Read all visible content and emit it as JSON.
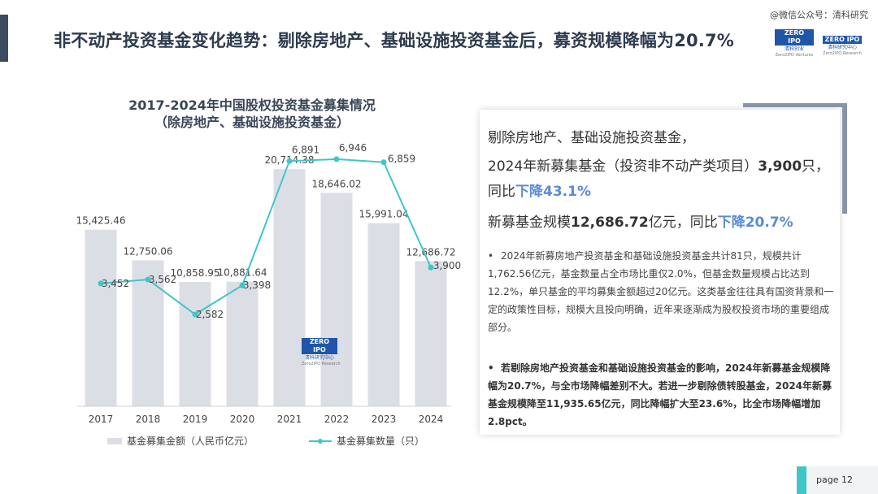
{
  "header": {
    "title": "非不动产投资基金变化趋势：剔除房地产、基础设施投资基金后，募资规模降幅为20.7%",
    "watermark": "@微信公众号：清科研究",
    "logo1_badge": "ZERO IPO",
    "logo1_sub": "清科创业",
    "logo1_sub2": "Zero2IPO Ventures",
    "logo2_badge": "ZERO IPO",
    "logo2_sub": "清科研究中心",
    "logo2_sub2": "Zero2IPO Research"
  },
  "chart_data": {
    "type": "bar",
    "title": "2017-2024年中国股权投资基金募集情况",
    "subtitle": "（除房地产、基础设施投资基金）",
    "categories": [
      "2017",
      "2018",
      "2019",
      "2020",
      "2021",
      "2022",
      "2023",
      "2024"
    ],
    "series": [
      {
        "name": "基金募集金额（人民币亿元）",
        "type": "bar",
        "color": "#dcdee6",
        "values": [
          15425.46,
          12750.06,
          10858.95,
          10881.64,
          20714.38,
          18646.02,
          15991.04,
          12686.72
        ],
        "labels": [
          "15,425.46",
          "12,750.06",
          "10,858.95",
          "10,881.64",
          "20,714.38",
          "18,646.02",
          "15,991.04",
          "12,686.72"
        ]
      },
      {
        "name": "基金募集数量（只）",
        "type": "line",
        "color": "#3ec6c9",
        "values": [
          3452,
          3562,
          2582,
          3398,
          6891,
          6946,
          6859,
          3900
        ],
        "labels": [
          "3,452",
          "3,562",
          "2,582",
          "3,398",
          "6,891",
          "6,946",
          "6,859",
          "3,900"
        ]
      }
    ],
    "bar_ylim": [
      0,
      23000
    ],
    "line_ylim": [
      0,
      7400
    ],
    "legend": "bottom",
    "grid": false,
    "watermark_badge": "ZERO IPO",
    "watermark_sub": "清科研究中心",
    "watermark_sub2": "Zero2IPO Research"
  },
  "panel": {
    "line1": "剔除房地产、基础设施投资基金，",
    "line2_a": "2024年新募集基金（投资非不动产类项目）",
    "line2_b": "3,900",
    "line2_c": "只，",
    "line3_a": "同比",
    "line3_b": "下降43.1%",
    "line4_a": "新募基金规模",
    "line4_b": "12,686.72",
    "line4_c": "亿元，同比",
    "line4_d": "下降20.7%",
    "bullet1": "2024年新募房地产投资基金和基础设施投资基金共计81只，规模共计1,762.56亿元，基金数量占全市场比重仅2.0%，但基金数量规模占比达到12.2%，单只基金的平均募集金额超过20亿元。这类基金往往具有国资背景和一定的政策性目标，规模大且投向明确，近年来逐渐成为股权投资市场的重要组成部分。",
    "bullet2": "若剔除房地产投资基金和基础设施投资基金的影响，2024年新募基金规模降幅为20.7%，与全市场降幅差别不大。若进一步剔除债转股基金，2024年新募基金规模降至11,935.65亿元，同比降幅扩大至23.6%，比全市场降幅增加2.8pct。",
    "bullet_mark": "•"
  },
  "footer": {
    "page_label": "page 12"
  }
}
